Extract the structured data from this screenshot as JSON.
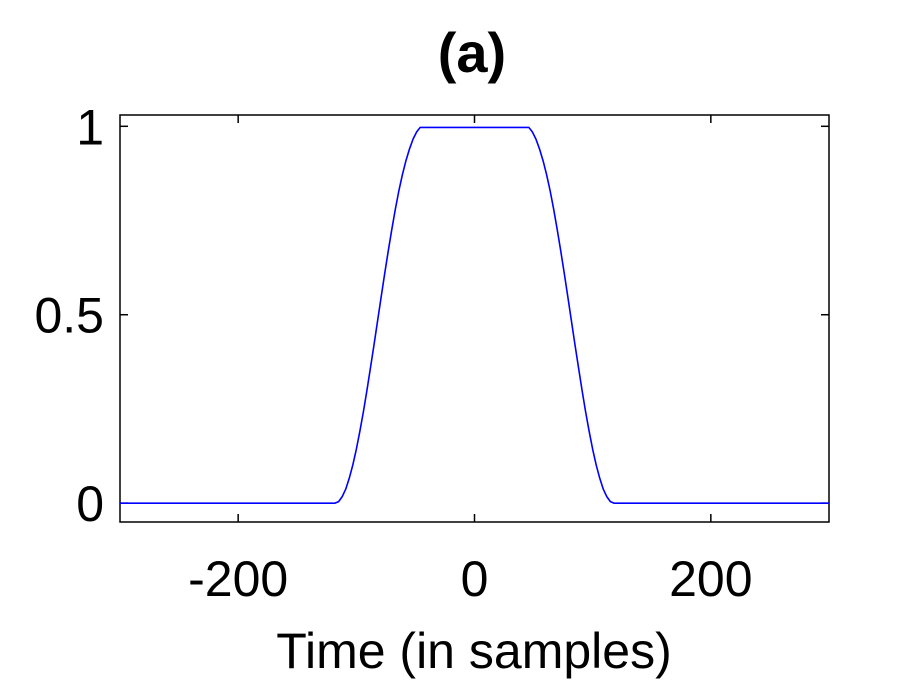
{
  "chart_data": {
    "type": "line",
    "title": "(a)",
    "xlabel": "Time (in samples)",
    "ylabel": "",
    "xlim": [
      -300,
      300
    ],
    "ylim": [
      -0.05,
      1.03
    ],
    "xticks": [
      -200,
      0,
      200
    ],
    "xtick_labels": [
      "-200",
      "0",
      "200"
    ],
    "yticks": [
      0,
      0.5,
      1
    ],
    "ytick_labels": [
      "0",
      "0.5",
      "1"
    ],
    "grid": false,
    "series": [
      {
        "color": "#0000ff",
        "x": [
          -300,
          -118,
          -115,
          -112,
          -109,
          -106,
          -103,
          -100,
          -97,
          -94,
          -91,
          -88,
          -85,
          -82,
          -79,
          -76,
          -73,
          -70,
          -67,
          -64,
          -61,
          -58,
          -55,
          -52,
          -49,
          -46,
          46,
          49,
          52,
          55,
          58,
          61,
          64,
          67,
          70,
          73,
          76,
          79,
          82,
          85,
          88,
          91,
          94,
          97,
          100,
          103,
          106,
          109,
          112,
          115,
          118,
          300
        ],
        "y": [
          0,
          0,
          0.004,
          0.017,
          0.037,
          0.066,
          0.101,
          0.143,
          0.191,
          0.243,
          0.3,
          0.36,
          0.421,
          0.484,
          0.547,
          0.609,
          0.669,
          0.726,
          0.78,
          0.829,
          0.872,
          0.909,
          0.94,
          0.966,
          0.985,
          0.997,
          0.997,
          0.985,
          0.966,
          0.94,
          0.909,
          0.872,
          0.829,
          0.78,
          0.726,
          0.669,
          0.609,
          0.547,
          0.484,
          0.421,
          0.36,
          0.3,
          0.243,
          0.191,
          0.143,
          0.101,
          0.066,
          0.037,
          0.017,
          0.004,
          0,
          0
        ]
      }
    ]
  }
}
